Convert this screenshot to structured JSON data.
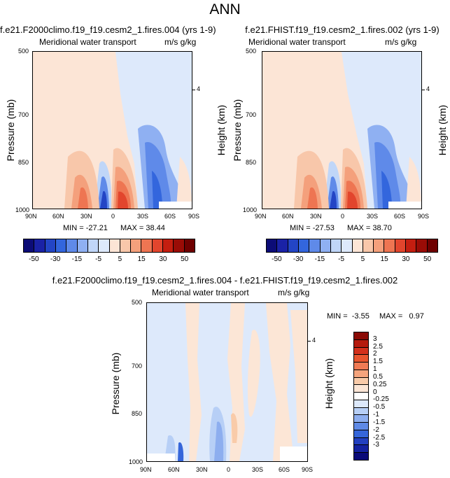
{
  "page_title": "ANN",
  "chart_data": [
    {
      "type": "heatmap",
      "title": "f.e21.F2000climo.f19_f19.cesm2_1.fires.004 (yrs 1-9)",
      "left_subtitle": "Meridional water transport",
      "right_subtitle": "m/s g/kg",
      "xlabel": "",
      "ylabel": "Pressure (mb)",
      "right_axis_label": "Height (km)",
      "x_ticks": [
        "90N",
        "60N",
        "30N",
        "0",
        "30S",
        "60S",
        "90S"
      ],
      "y_ticks": [
        "500",
        "700",
        "850",
        "1000"
      ],
      "y_range": [
        500,
        1000
      ],
      "right_ticks": [
        "4"
      ],
      "min_label": "MIN = -27.21",
      "max_label": "MAX = 38.44",
      "min": -27.21,
      "max": 38.44
    },
    {
      "type": "heatmap",
      "title": "f.e21.FHIST.f19_f19.cesm2_1.fires.002 (yrs 1-9)",
      "left_subtitle": "Meridional water transport",
      "right_subtitle": "m/s g/kg",
      "xlabel": "",
      "ylabel": "Pressure (mb)",
      "right_axis_label": "Height (km)",
      "x_ticks": [
        "90N",
        "60N",
        "30N",
        "0",
        "30S",
        "60S",
        "90S"
      ],
      "y_ticks": [
        "500",
        "700",
        "850",
        "1000"
      ],
      "y_range": [
        500,
        1000
      ],
      "right_ticks": [
        "4"
      ],
      "min_label": "MIN = -27.53",
      "max_label": "MAX = 38.70",
      "min": -27.53,
      "max": 38.7
    },
    {
      "type": "heatmap",
      "title": "f.e21.F2000climo.f19_f19.cesm2_1.fires.004 - f.e21.FHIST.f19_f19.cesm2_1.fires.002",
      "left_subtitle": "Meridional water transport",
      "right_subtitle": "m/s g/kg",
      "xlabel": "",
      "ylabel": "Pressure (mb)",
      "right_axis_label": "Height (km)",
      "x_ticks": [
        "90N",
        "60N",
        "30N",
        "0",
        "30S",
        "60S",
        "90S"
      ],
      "y_ticks": [
        "500",
        "700",
        "850",
        "1000"
      ],
      "y_range": [
        500,
        1000
      ],
      "right_ticks": [
        "4"
      ],
      "min_label": "MIN =  -3.55",
      "max_label": "MAX =   0.97",
      "min": -3.55,
      "max": 0.97
    }
  ],
  "colorbar_top": {
    "labels": [
      "-50",
      "-30",
      "-15",
      "-5",
      "5",
      "15",
      "30",
      "50"
    ],
    "colors": [
      "#0c0c77",
      "#1a22a6",
      "#2345c5",
      "#3366dd",
      "#5f8ae9",
      "#8fb0f2",
      "#c0d6f8",
      "#dde9fb",
      "#fce5d6",
      "#f8c7aa",
      "#f4a07c",
      "#ee7552",
      "#e2452d",
      "#c41e10",
      "#9a0c06",
      "#6f0000"
    ]
  },
  "colorbar_diff": {
    "labels": [
      "3",
      "2.5",
      "2",
      "1.5",
      "1",
      "0.5",
      "0.25",
      "0",
      "-0.25",
      "-0.5",
      "-1",
      "-1.5",
      "-2",
      "-2.5",
      "-3"
    ],
    "colors": [
      "#8a0a05",
      "#b51a0e",
      "#d3301c",
      "#e8552f",
      "#f07b55",
      "#f5a47d",
      "#f9cba9",
      "#fce6d6",
      "#ffffff",
      "#dde9fb",
      "#b7cff6",
      "#8daeef",
      "#5f8ae6",
      "#3566da",
      "#2240c0",
      "#1422a0",
      "#0a0a78"
    ]
  }
}
